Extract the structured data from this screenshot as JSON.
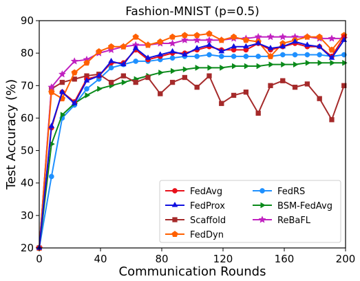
{
  "chart_data": {
    "type": "line",
    "title": "Fashion-MNIST (p=0.5)",
    "xlabel": "Communication Rounds",
    "ylabel": "Test Accuracy (%)",
    "xlim": [
      0,
      200
    ],
    "ylim": [
      20,
      90
    ],
    "xticks": [
      0,
      40,
      80,
      120,
      160,
      200
    ],
    "yticks": [
      20,
      30,
      40,
      50,
      60,
      70,
      80,
      90
    ],
    "grid": false,
    "legend_position": "lower-right",
    "x": [
      0,
      8,
      15,
      23,
      31,
      39,
      47,
      55,
      63,
      71,
      79,
      87,
      95,
      103,
      111,
      119,
      127,
      135,
      143,
      151,
      159,
      167,
      175,
      183,
      191,
      199
    ],
    "series": [
      {
        "name": "FedAvg",
        "color": "#e8101a",
        "marker": "circle",
        "values": [
          20,
          57,
          68,
          65,
          72,
          73,
          77,
          77,
          81,
          78,
          79,
          80,
          80,
          81,
          82,
          81,
          81,
          81,
          83,
          81,
          82,
          83,
          82,
          82,
          79,
          85
        ]
      },
      {
        "name": "FedProx",
        "color": "#1010e0",
        "marker": "triangle",
        "values": [
          20,
          57.5,
          68,
          64.5,
          71.5,
          73,
          77.5,
          76.5,
          81.5,
          78.5,
          79.5,
          80.5,
          79.5,
          81.5,
          82.5,
          80.5,
          82,
          82,
          83,
          81.5,
          82,
          83.5,
          82.5,
          82,
          78.5,
          84
        ]
      },
      {
        "name": "Scaffold",
        "color": "#a52a2a",
        "marker": "square",
        "values": [
          20,
          69,
          71,
          72,
          73,
          73.5,
          71,
          73,
          71,
          72.5,
          67.5,
          71,
          72.5,
          69.5,
          73,
          64.5,
          67,
          68,
          61.5,
          70,
          71.5,
          69.5,
          70.5,
          66,
          59.5,
          70
        ]
      },
      {
        "name": "FedDyn",
        "color": "#ff6000",
        "marker": "pentagon",
        "values": [
          20,
          68,
          66,
          74,
          77,
          80.5,
          82,
          82,
          85,
          82.5,
          83.5,
          85,
          85.5,
          85.5,
          86,
          84,
          85,
          84,
          83.5,
          79,
          83,
          84,
          85,
          85,
          81,
          85.5
        ]
      },
      {
        "name": "FedRS",
        "color": "#1e90ff",
        "marker": "circle",
        "values": [
          20,
          42,
          60,
          64,
          69,
          72,
          75.5,
          76.5,
          77.5,
          77.5,
          78,
          78.5,
          79,
          79,
          79.5,
          79,
          79,
          79,
          79,
          79,
          79.5,
          79.5,
          79.5,
          79.5,
          79,
          79.5
        ]
      },
      {
        "name": "BSM-FedAvg",
        "color": "#0a8a1a",
        "marker": "triangle-right",
        "values": [
          20,
          52,
          61,
          64.5,
          67,
          69,
          70,
          71,
          72,
          73,
          74,
          74.5,
          75,
          75.5,
          75.5,
          75.5,
          76,
          76,
          76,
          76.5,
          76.5,
          76.5,
          77,
          77,
          77,
          77
        ]
      },
      {
        "name": "ReBaFL",
        "color": "#c020c0",
        "marker": "star",
        "values": [
          20,
          69.5,
          73.5,
          77.5,
          78,
          80,
          81,
          82,
          82.5,
          82.5,
          83,
          83,
          84,
          84,
          84,
          84,
          84.5,
          84.5,
          85,
          85,
          85,
          85,
          85,
          84.5,
          84.5,
          84.5
        ]
      }
    ]
  }
}
